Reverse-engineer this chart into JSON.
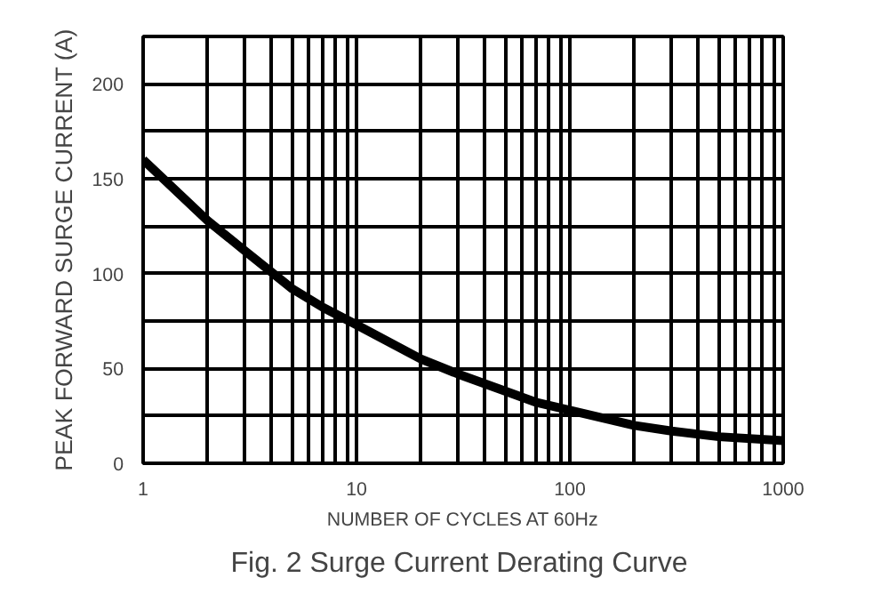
{
  "chart_data": {
    "type": "line",
    "title": "Fig. 2  Surge Current Derating Curve",
    "xlabel": "NUMBER OF CYCLES AT 60Hz",
    "ylabel": "PEAK FORWARD SURGE CURRENT (A)",
    "log": "x",
    "grid": true,
    "xlim": [
      1,
      1000
    ],
    "ylim": [
      0,
      225
    ],
    "xticks": [
      1,
      {
        "value": 2,
        "label": null
      },
      {
        "value": 3,
        "label": null
      },
      {
        "value": 4,
        "label": null
      },
      {
        "value": 5,
        "label": null
      },
      {
        "value": 6,
        "label": null
      },
      {
        "value": 7,
        "label": null
      },
      {
        "value": 8,
        "label": null
      },
      {
        "value": 9,
        "label": null
      },
      10,
      {
        "value": 20,
        "label": null
      },
      {
        "value": 30,
        "label": null
      },
      {
        "value": 40,
        "label": null
      },
      {
        "value": 50,
        "label": null
      },
      {
        "value": 60,
        "label": null
      },
      {
        "value": 70,
        "label": null
      },
      {
        "value": 80,
        "label": null
      },
      {
        "value": 90,
        "label": null
      },
      100,
      {
        "value": 200,
        "label": null
      },
      {
        "value": 300,
        "label": null
      },
      {
        "value": 400,
        "label": null
      },
      {
        "value": 500,
        "label": null
      },
      {
        "value": 600,
        "label": null
      },
      {
        "value": 700,
        "label": null
      },
      {
        "value": 800,
        "label": null
      },
      {
        "value": 900,
        "label": null
      },
      1000
    ],
    "yticks": [
      0,
      {
        "value": 25,
        "label": null
      },
      50,
      {
        "value": 75,
        "label": null
      },
      100,
      {
        "value": 125,
        "label": null
      },
      150,
      {
        "value": 175,
        "label": null
      },
      200,
      {
        "value": 225,
        "label": null
      }
    ],
    "x": [
      1,
      2,
      3,
      5,
      7,
      10,
      20,
      30,
      50,
      70,
      100,
      200,
      300,
      500,
      1000
    ],
    "series": [
      {
        "color": "#000000",
        "values": [
          160,
          128,
          112,
          92,
          82,
          73,
          55,
          47,
          38,
          32,
          28,
          20,
          17,
          14,
          12
        ]
      }
    ]
  }
}
